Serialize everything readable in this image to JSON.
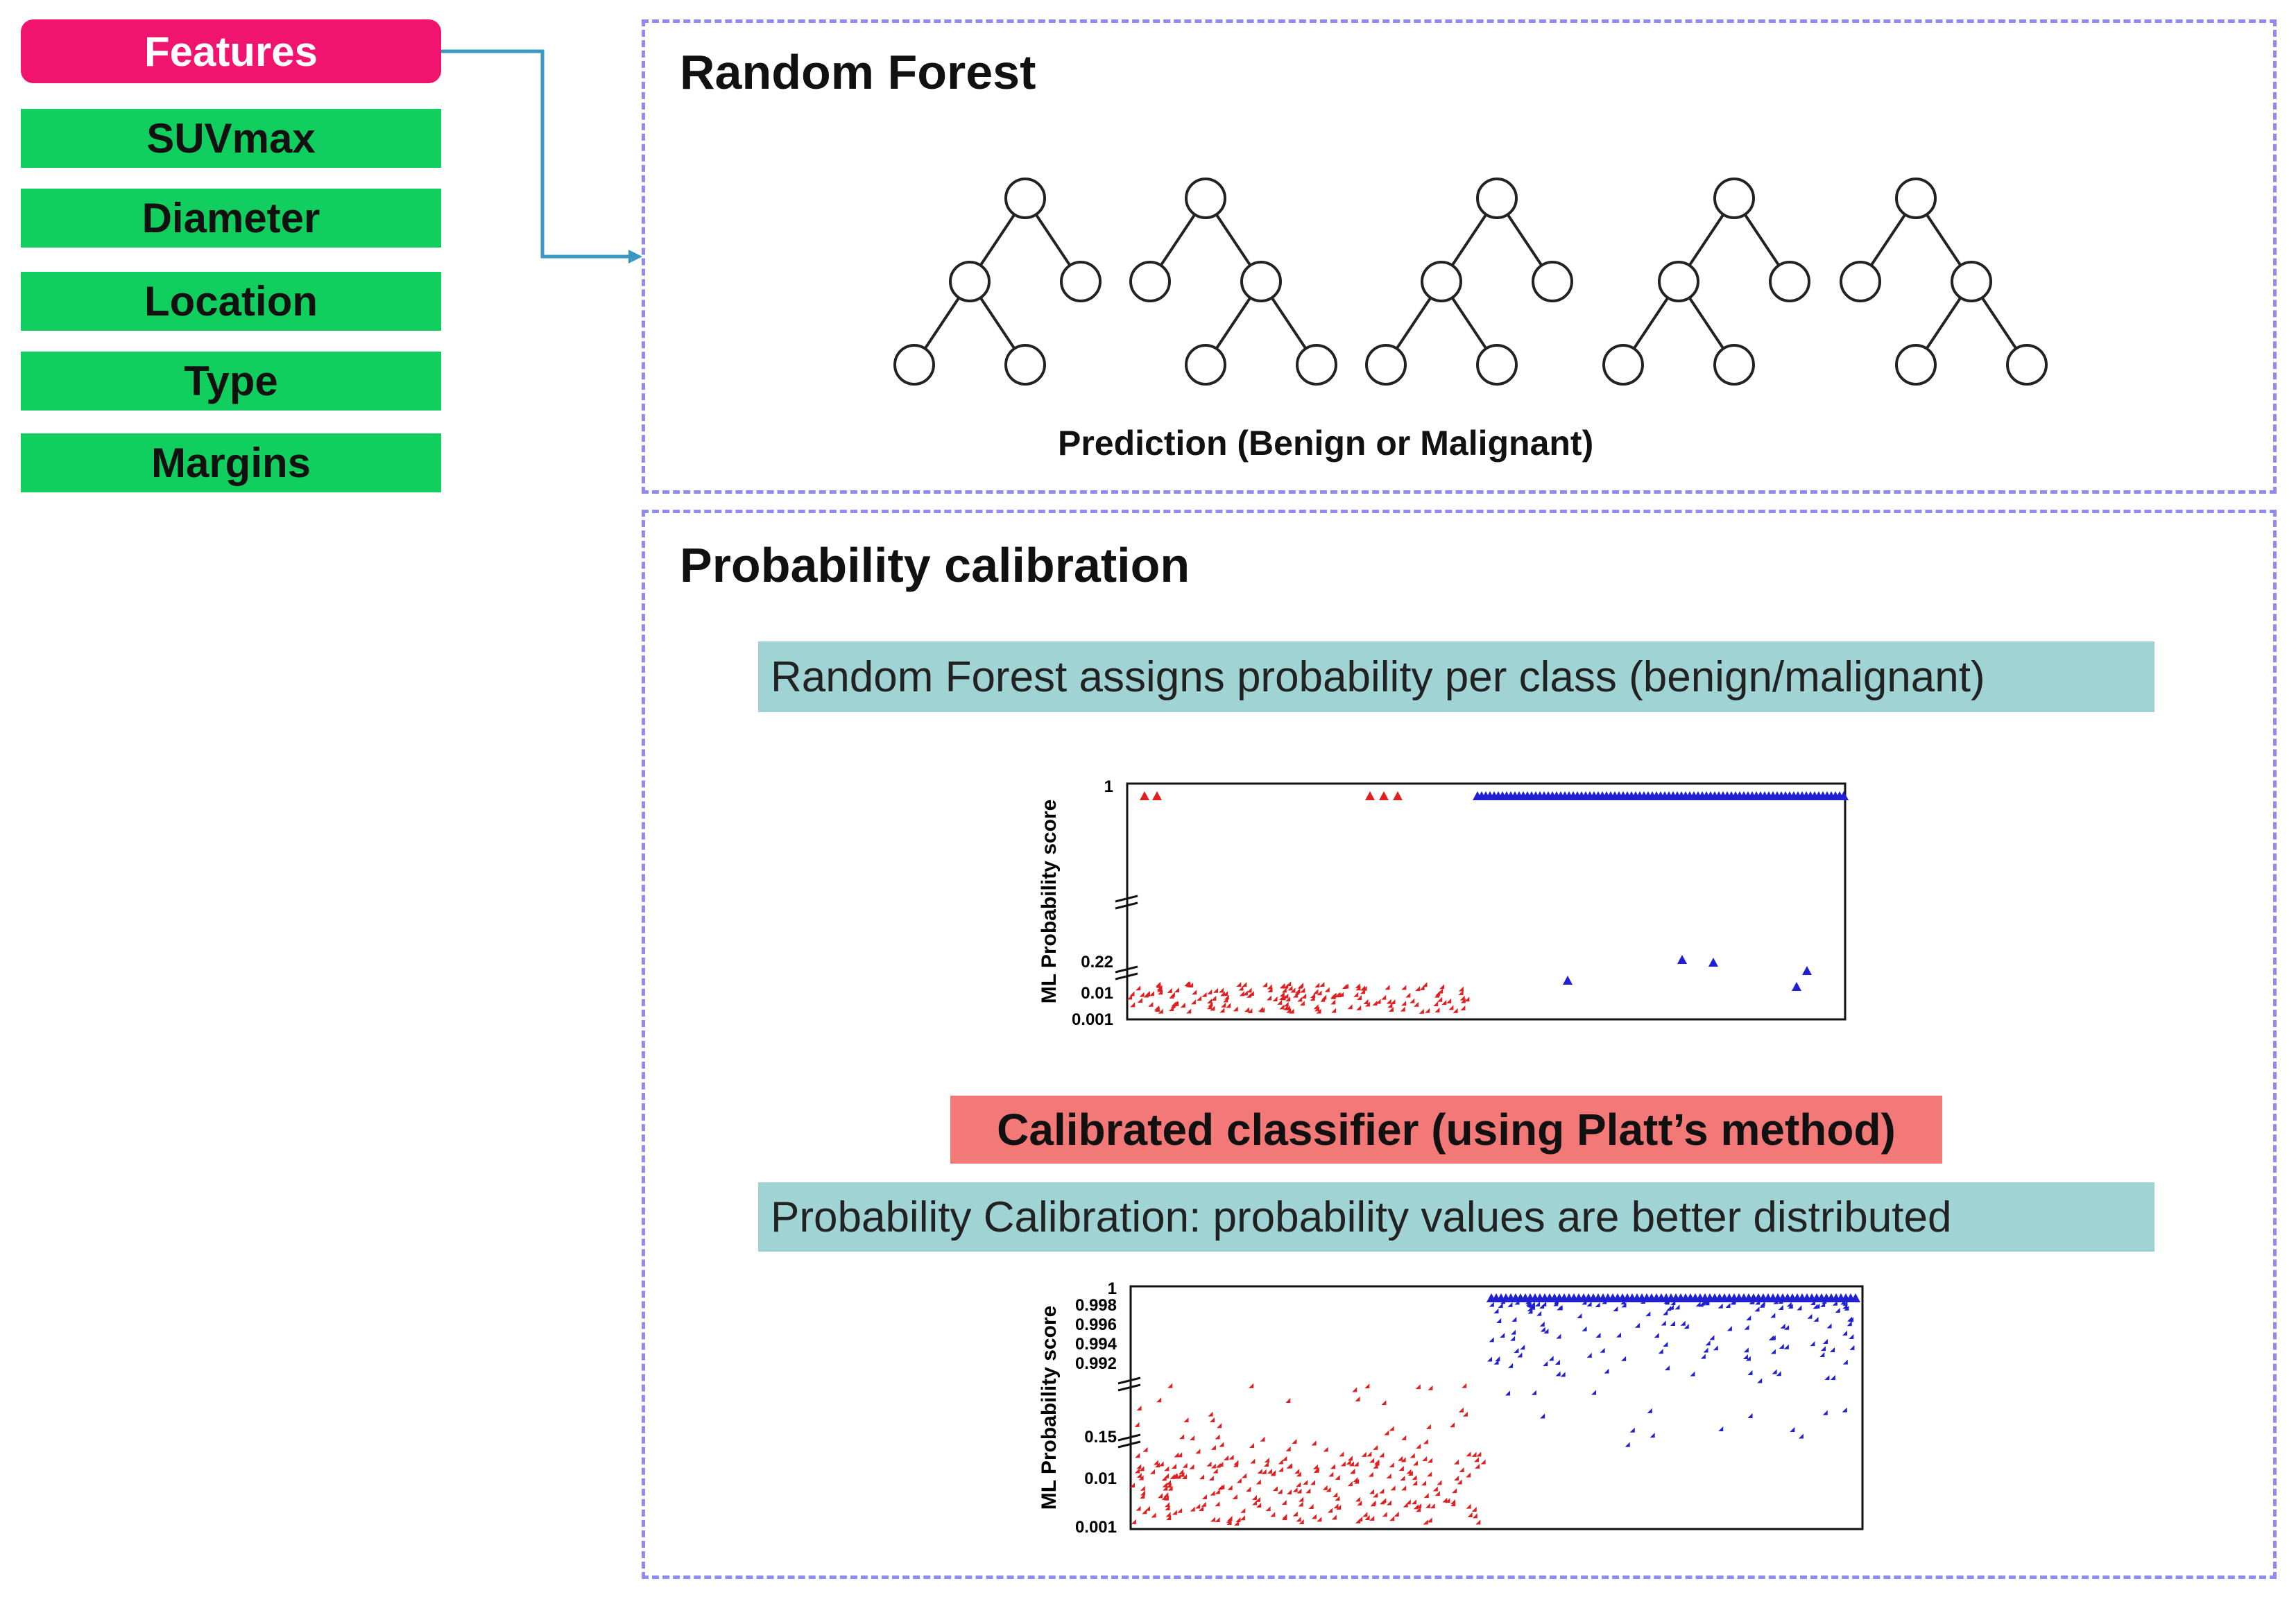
{
  "features": {
    "header": "Features",
    "items": [
      "SUVmax",
      "Diameter",
      "Location",
      "Type",
      "Margins"
    ],
    "header_color": "#f0146e",
    "item_color": "#10cf5f"
  },
  "random_forest": {
    "title": "Random Forest",
    "tree_count": 5,
    "prediction_label": "Prediction (Benign or Malignant)"
  },
  "calibration": {
    "title": "Probability calibration",
    "rf_bar": "Random Forest assigns probability per class (benign/malignant)",
    "platt_bar": "Calibrated classifier (using Platt’s method)",
    "calib_bar": "Probability Calibration: probability values are better distributed",
    "bar_color": "#9fd3d4",
    "platt_color": "#f37878"
  },
  "chart_data": [
    {
      "type": "scatter",
      "title": "",
      "xlabel": "",
      "ylabel": "ML Probability score",
      "y_ticks": [
        "1",
        "0.22",
        "0.01",
        "0.001"
      ],
      "axis_breaks": true,
      "series": [
        {
          "name": "",
          "color": "#e02020",
          "description_points": "benign cases: most below 0.01, a few near 1"
        },
        {
          "name": "",
          "color": "#2020d0",
          "description_points": "malignant cases: nearly all near 1, a few near 0.22 and below"
        }
      ]
    },
    {
      "type": "scatter",
      "title": "",
      "xlabel": "",
      "ylabel": "ML Probability score",
      "y_ticks": [
        "1",
        "0.998",
        "0.996",
        "0.994",
        "0.992",
        "0.15",
        "0.01",
        "0.001"
      ],
      "axis_breaks": true,
      "series": [
        {
          "name": "",
          "color": "#e02020"
        },
        {
          "name": "",
          "color": "#2020d0"
        }
      ]
    }
  ]
}
